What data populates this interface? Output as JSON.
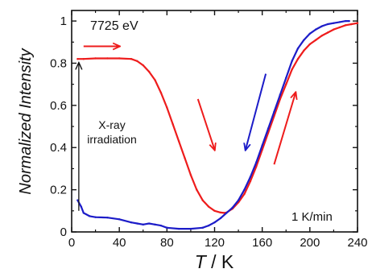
{
  "chart_data": {
    "type": "line",
    "title": "",
    "xlabel": "T / K",
    "xlabel_italic_part": "T",
    "xlabel_rest": " / K",
    "ylabel": "Normalized Intensity",
    "xlim": [
      0,
      240
    ],
    "ylim": [
      0,
      1.05
    ],
    "xticks": [
      0,
      40,
      80,
      120,
      160,
      200,
      240
    ],
    "yticks": [
      0,
      0.2,
      0.4,
      0.6,
      0.8,
      1
    ],
    "ytick_labels": [
      "0",
      "0.2",
      "0.4",
      "0.6",
      "0.8",
      "1"
    ],
    "grid": false,
    "legend": "none",
    "annotations": {
      "energy": "7725 eV",
      "rate": "1 K/min",
      "irradiation_line1": "X-ray",
      "irradiation_line2": "irradiation"
    },
    "series": [
      {
        "color": "#ee1c1c",
        "x": [
          5,
          10,
          20,
          30,
          40,
          50,
          55,
          60,
          65,
          70,
          75,
          80,
          85,
          90,
          95,
          100,
          105,
          110,
          115,
          120,
          125,
          128,
          130,
          135,
          140,
          145,
          150,
          155,
          160,
          165,
          170,
          175,
          180,
          185,
          190,
          195,
          200,
          205,
          210,
          215,
          220,
          225,
          230,
          235,
          240
        ],
        "y": [
          0.82,
          0.82,
          0.823,
          0.823,
          0.823,
          0.82,
          0.81,
          0.79,
          0.76,
          0.72,
          0.66,
          0.59,
          0.51,
          0.43,
          0.35,
          0.27,
          0.2,
          0.15,
          0.12,
          0.1,
          0.092,
          0.09,
          0.092,
          0.11,
          0.14,
          0.18,
          0.24,
          0.31,
          0.39,
          0.47,
          0.55,
          0.63,
          0.7,
          0.77,
          0.82,
          0.86,
          0.89,
          0.91,
          0.93,
          0.945,
          0.96,
          0.97,
          0.98,
          0.985,
          0.99
        ]
      },
      {
        "color": "#1c1cc8",
        "x": [
          5,
          8,
          10,
          15,
          20,
          30,
          40,
          50,
          55,
          60,
          65,
          70,
          75,
          80,
          90,
          100,
          110,
          115,
          120,
          125,
          130,
          135,
          140,
          145,
          150,
          155,
          160,
          165,
          170,
          175,
          180,
          185,
          190,
          195,
          200,
          205,
          210,
          215,
          220,
          225,
          230,
          233
        ],
        "y": [
          0.15,
          0.12,
          0.09,
          0.075,
          0.07,
          0.068,
          0.06,
          0.045,
          0.04,
          0.035,
          0.04,
          0.035,
          0.03,
          0.02,
          0.015,
          0.015,
          0.02,
          0.03,
          0.045,
          0.065,
          0.09,
          0.115,
          0.15,
          0.2,
          0.26,
          0.33,
          0.41,
          0.49,
          0.57,
          0.65,
          0.73,
          0.81,
          0.87,
          0.91,
          0.94,
          0.96,
          0.975,
          0.985,
          0.99,
          0.995,
          1.0,
          1.0
        ]
      }
    ],
    "arrows": [
      {
        "color": "#ee1c1c",
        "from": [
          10,
          0.88
        ],
        "to": [
          40,
          0.88
        ]
      },
      {
        "color": "#ee1c1c",
        "from": [
          106,
          0.63
        ],
        "to": [
          120,
          0.39
        ]
      },
      {
        "color": "#1c1cc8",
        "from": [
          163,
          0.75
        ],
        "to": [
          146,
          0.39
        ]
      },
      {
        "color": "#ee1c1c",
        "from": [
          170,
          0.32
        ],
        "to": [
          188,
          0.66
        ]
      },
      {
        "color": "#111111",
        "from": [
          6,
          0.1
        ],
        "to": [
          6,
          0.8
        ]
      }
    ]
  }
}
